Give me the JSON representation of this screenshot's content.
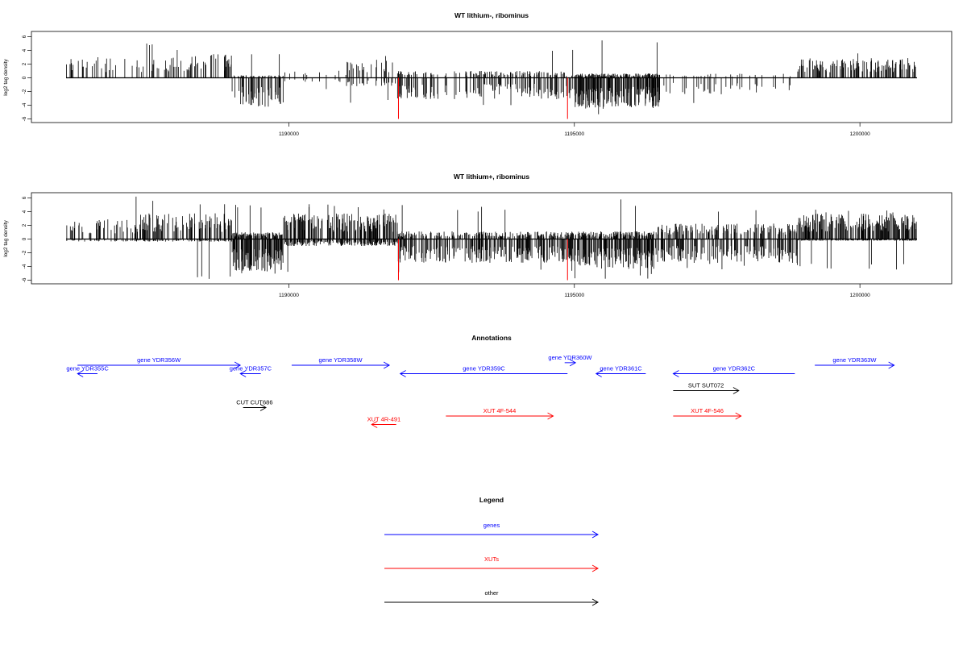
{
  "colors": {
    "genes": "#0000ff",
    "xuts": "#ff0000",
    "other": "#000000",
    "bars": "#000000",
    "marker": "#ff0000"
  },
  "chart_data": [
    {
      "type": "bar",
      "title": "WT lithium-, ribominus",
      "ylabel": "log2 tag density",
      "xlim": [
        1186100,
        1201000
      ],
      "ylim": [
        -6,
        6
      ],
      "yticks": [
        "-6",
        "-4",
        "-2",
        "0",
        "2",
        "4",
        "6"
      ],
      "xticks": [
        "1190000",
        "1195000",
        "1200000"
      ],
      "red_markers_x": [
        1191920,
        1194880
      ],
      "density_profile": [
        {
          "from": 1186100,
          "to": 1188200,
          "pos": 2.4,
          "neg": 0,
          "peak": 5.0,
          "density": 0.2
        },
        {
          "from": 1188200,
          "to": 1189000,
          "pos": 2.8,
          "neg": 0,
          "peak": 4.5,
          "density": 0.25
        },
        {
          "from": 1189000,
          "to": 1189900,
          "pos": 0.3,
          "neg": 3.4,
          "peak": 4.2,
          "density": 0.5
        },
        {
          "from": 1189900,
          "to": 1191000,
          "pos": 1.0,
          "neg": 0.5,
          "peak": 2.0,
          "density": 0.08
        },
        {
          "from": 1191000,
          "to": 1191900,
          "pos": 2.2,
          "neg": 1.0,
          "peak": 3.8,
          "density": 0.25
        },
        {
          "from": 1191900,
          "to": 1195000,
          "pos": 0.8,
          "neg": 2.5,
          "peak": 4.5,
          "density": 0.35
        },
        {
          "from": 1195000,
          "to": 1196500,
          "pos": 0.5,
          "neg": 3.5,
          "peak": 5.5,
          "density": 0.85
        },
        {
          "from": 1196500,
          "to": 1198900,
          "pos": 0.5,
          "neg": 2.0,
          "peak": 4.0,
          "density": 0.12
        },
        {
          "from": 1198900,
          "to": 1201000,
          "pos": 2.3,
          "neg": 0,
          "peak": 3.6,
          "density": 0.55
        }
      ]
    },
    {
      "type": "bar",
      "title": "WT lithium+, ribominus",
      "ylabel": "log2 tag density",
      "xlim": [
        1186100,
        1201000
      ],
      "ylim": [
        -6,
        6
      ],
      "yticks": [
        "-6",
        "-4",
        "-2",
        "0",
        "2",
        "4",
        "6"
      ],
      "xticks": [
        "1190000",
        "1195000",
        "1200000"
      ],
      "red_markers_x": [
        1191920,
        1194880
      ],
      "density_profile": [
        {
          "from": 1186100,
          "to": 1187300,
          "pos": 2.3,
          "neg": 0.3,
          "peak": 3.5,
          "density": 0.3
        },
        {
          "from": 1187300,
          "to": 1189000,
          "pos": 3.0,
          "neg": 0.3,
          "peak": 6.2,
          "density": 0.55
        },
        {
          "from": 1189000,
          "to": 1189900,
          "pos": 0.8,
          "neg": 3.8,
          "peak": 5.5,
          "density": 0.85
        },
        {
          "from": 1189900,
          "to": 1191900,
          "pos": 3.0,
          "neg": 0.8,
          "peak": 5.3,
          "density": 0.7
        },
        {
          "from": 1191900,
          "to": 1195000,
          "pos": 0.9,
          "neg": 2.8,
          "peak": 5.0,
          "density": 0.5
        },
        {
          "from": 1195000,
          "to": 1196400,
          "pos": 0.9,
          "neg": 3.5,
          "peak": 5.8,
          "density": 0.8
        },
        {
          "from": 1196400,
          "to": 1198900,
          "pos": 1.8,
          "neg": 2.8,
          "peak": 4.5,
          "density": 0.5
        },
        {
          "from": 1198900,
          "to": 1201000,
          "pos": 3.0,
          "neg": 0.2,
          "peak": 4.5,
          "density": 0.75
        }
      ]
    }
  ],
  "annotations": {
    "title": "Annotations",
    "features": [
      {
        "label": "gene YDR355C",
        "kind": "genes",
        "start": 1186650,
        "end": 1186300,
        "row": 1
      },
      {
        "label": "gene YDR356W",
        "kind": "genes",
        "start": 1186300,
        "end": 1189150,
        "row": 0
      },
      {
        "label": "gene YDR357C",
        "kind": "genes",
        "start": 1189510,
        "end": 1189150,
        "row": 1
      },
      {
        "label": "gene YDR358W",
        "kind": "genes",
        "start": 1190050,
        "end": 1191760,
        "row": 0
      },
      {
        "label": "gene YDR359C",
        "kind": "genes",
        "start": 1194880,
        "end": 1191950,
        "row": 1
      },
      {
        "label": "gene YDR360W",
        "kind": "genes",
        "start": 1194830,
        "end": 1195020,
        "row": -0.3
      },
      {
        "label": "gene YDR361C",
        "kind": "genes",
        "start": 1196250,
        "end": 1195380,
        "row": 1
      },
      {
        "label": "gene YDR362C",
        "kind": "genes",
        "start": 1198860,
        "end": 1196730,
        "row": 1
      },
      {
        "label": "gene YDR363W",
        "kind": "genes",
        "start": 1199210,
        "end": 1200600,
        "row": 0
      },
      {
        "label": "SUT SUT072",
        "kind": "other",
        "start": 1196730,
        "end": 1197880,
        "row": 3
      },
      {
        "label": "CUT CUT686",
        "kind": "other",
        "start": 1189200,
        "end": 1189600,
        "row": 5
      },
      {
        "label": "XUT 4R-491",
        "kind": "xuts",
        "start": 1191880,
        "end": 1191450,
        "row": 7
      },
      {
        "label": "XUT 4F-544",
        "kind": "xuts",
        "start": 1192750,
        "end": 1194630,
        "row": 6
      },
      {
        "label": "XUT 4F-546",
        "kind": "xuts",
        "start": 1196730,
        "end": 1197920,
        "row": 6
      }
    ]
  },
  "legend": {
    "title": "Legend",
    "items": [
      {
        "label": "genes",
        "kind": "genes"
      },
      {
        "label": "XUTs",
        "kind": "xuts"
      },
      {
        "label": "other",
        "kind": "other"
      }
    ]
  }
}
